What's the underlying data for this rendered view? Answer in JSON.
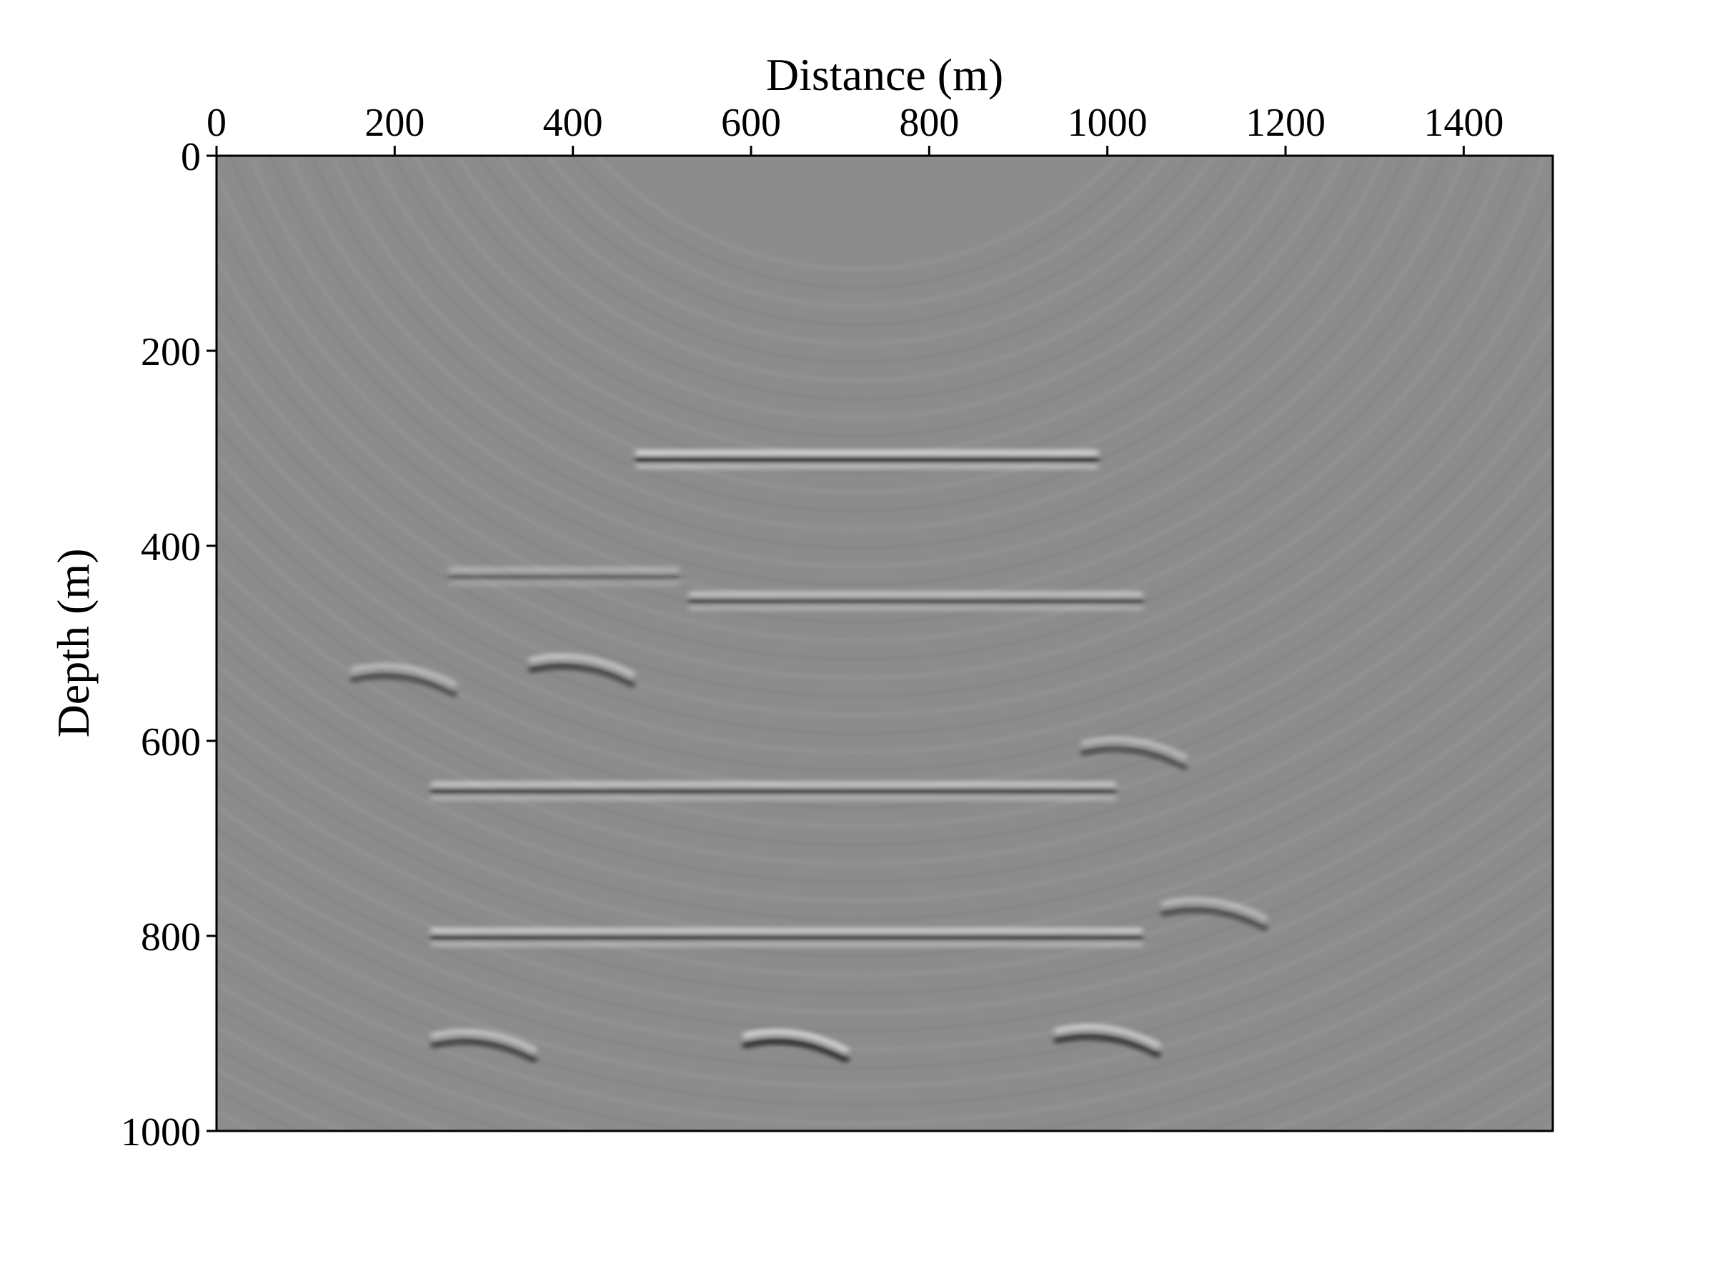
{
  "chart_data": {
    "type": "heatmap",
    "title": "",
    "xlabel": "Distance (m)",
    "ylabel": "Depth (m)",
    "xlim": [
      0,
      1500
    ],
    "ylim": [
      0,
      1000
    ],
    "x_axis_position": "top",
    "y_axis_inverted": true,
    "x_ticks": [
      "0",
      "200",
      "400",
      "600",
      "800",
      "1000",
      "1200",
      "1400"
    ],
    "x_tick_values": [
      0,
      200,
      400,
      600,
      800,
      1000,
      1200,
      1400
    ],
    "y_ticks": [
      "0",
      "200",
      "400",
      "600",
      "800",
      "1000"
    ],
    "y_tick_values": [
      0,
      200,
      400,
      600,
      800,
      1000
    ],
    "colormap": "grayscale",
    "background_color": "#8c8c8c",
    "reflectors": [
      {
        "x_start": 470,
        "x_end": 990,
        "depth": 310,
        "amplitude": 1.0
      },
      {
        "x_start": 260,
        "x_end": 520,
        "depth": 430,
        "amplitude": 0.5
      },
      {
        "x_start": 530,
        "x_end": 1040,
        "depth": 455,
        "amplitude": 0.75
      },
      {
        "x_start": 240,
        "x_end": 1010,
        "depth": 650,
        "amplitude": 0.8
      },
      {
        "x_start": 240,
        "x_end": 1040,
        "depth": 800,
        "amplitude": 0.85
      }
    ],
    "diffractors": [
      {
        "x": 210,
        "depth": 540,
        "amplitude": 0.6
      },
      {
        "x": 410,
        "depth": 530,
        "amplitude": 0.7
      },
      {
        "x": 300,
        "depth": 915,
        "amplitude": 0.7
      },
      {
        "x": 650,
        "depth": 915,
        "amplitude": 0.9
      },
      {
        "x": 1000,
        "depth": 910,
        "amplitude": 0.8
      },
      {
        "x": 1030,
        "depth": 615,
        "amplitude": 0.6
      },
      {
        "x": 1120,
        "depth": 780,
        "amplitude": 0.6
      }
    ]
  }
}
